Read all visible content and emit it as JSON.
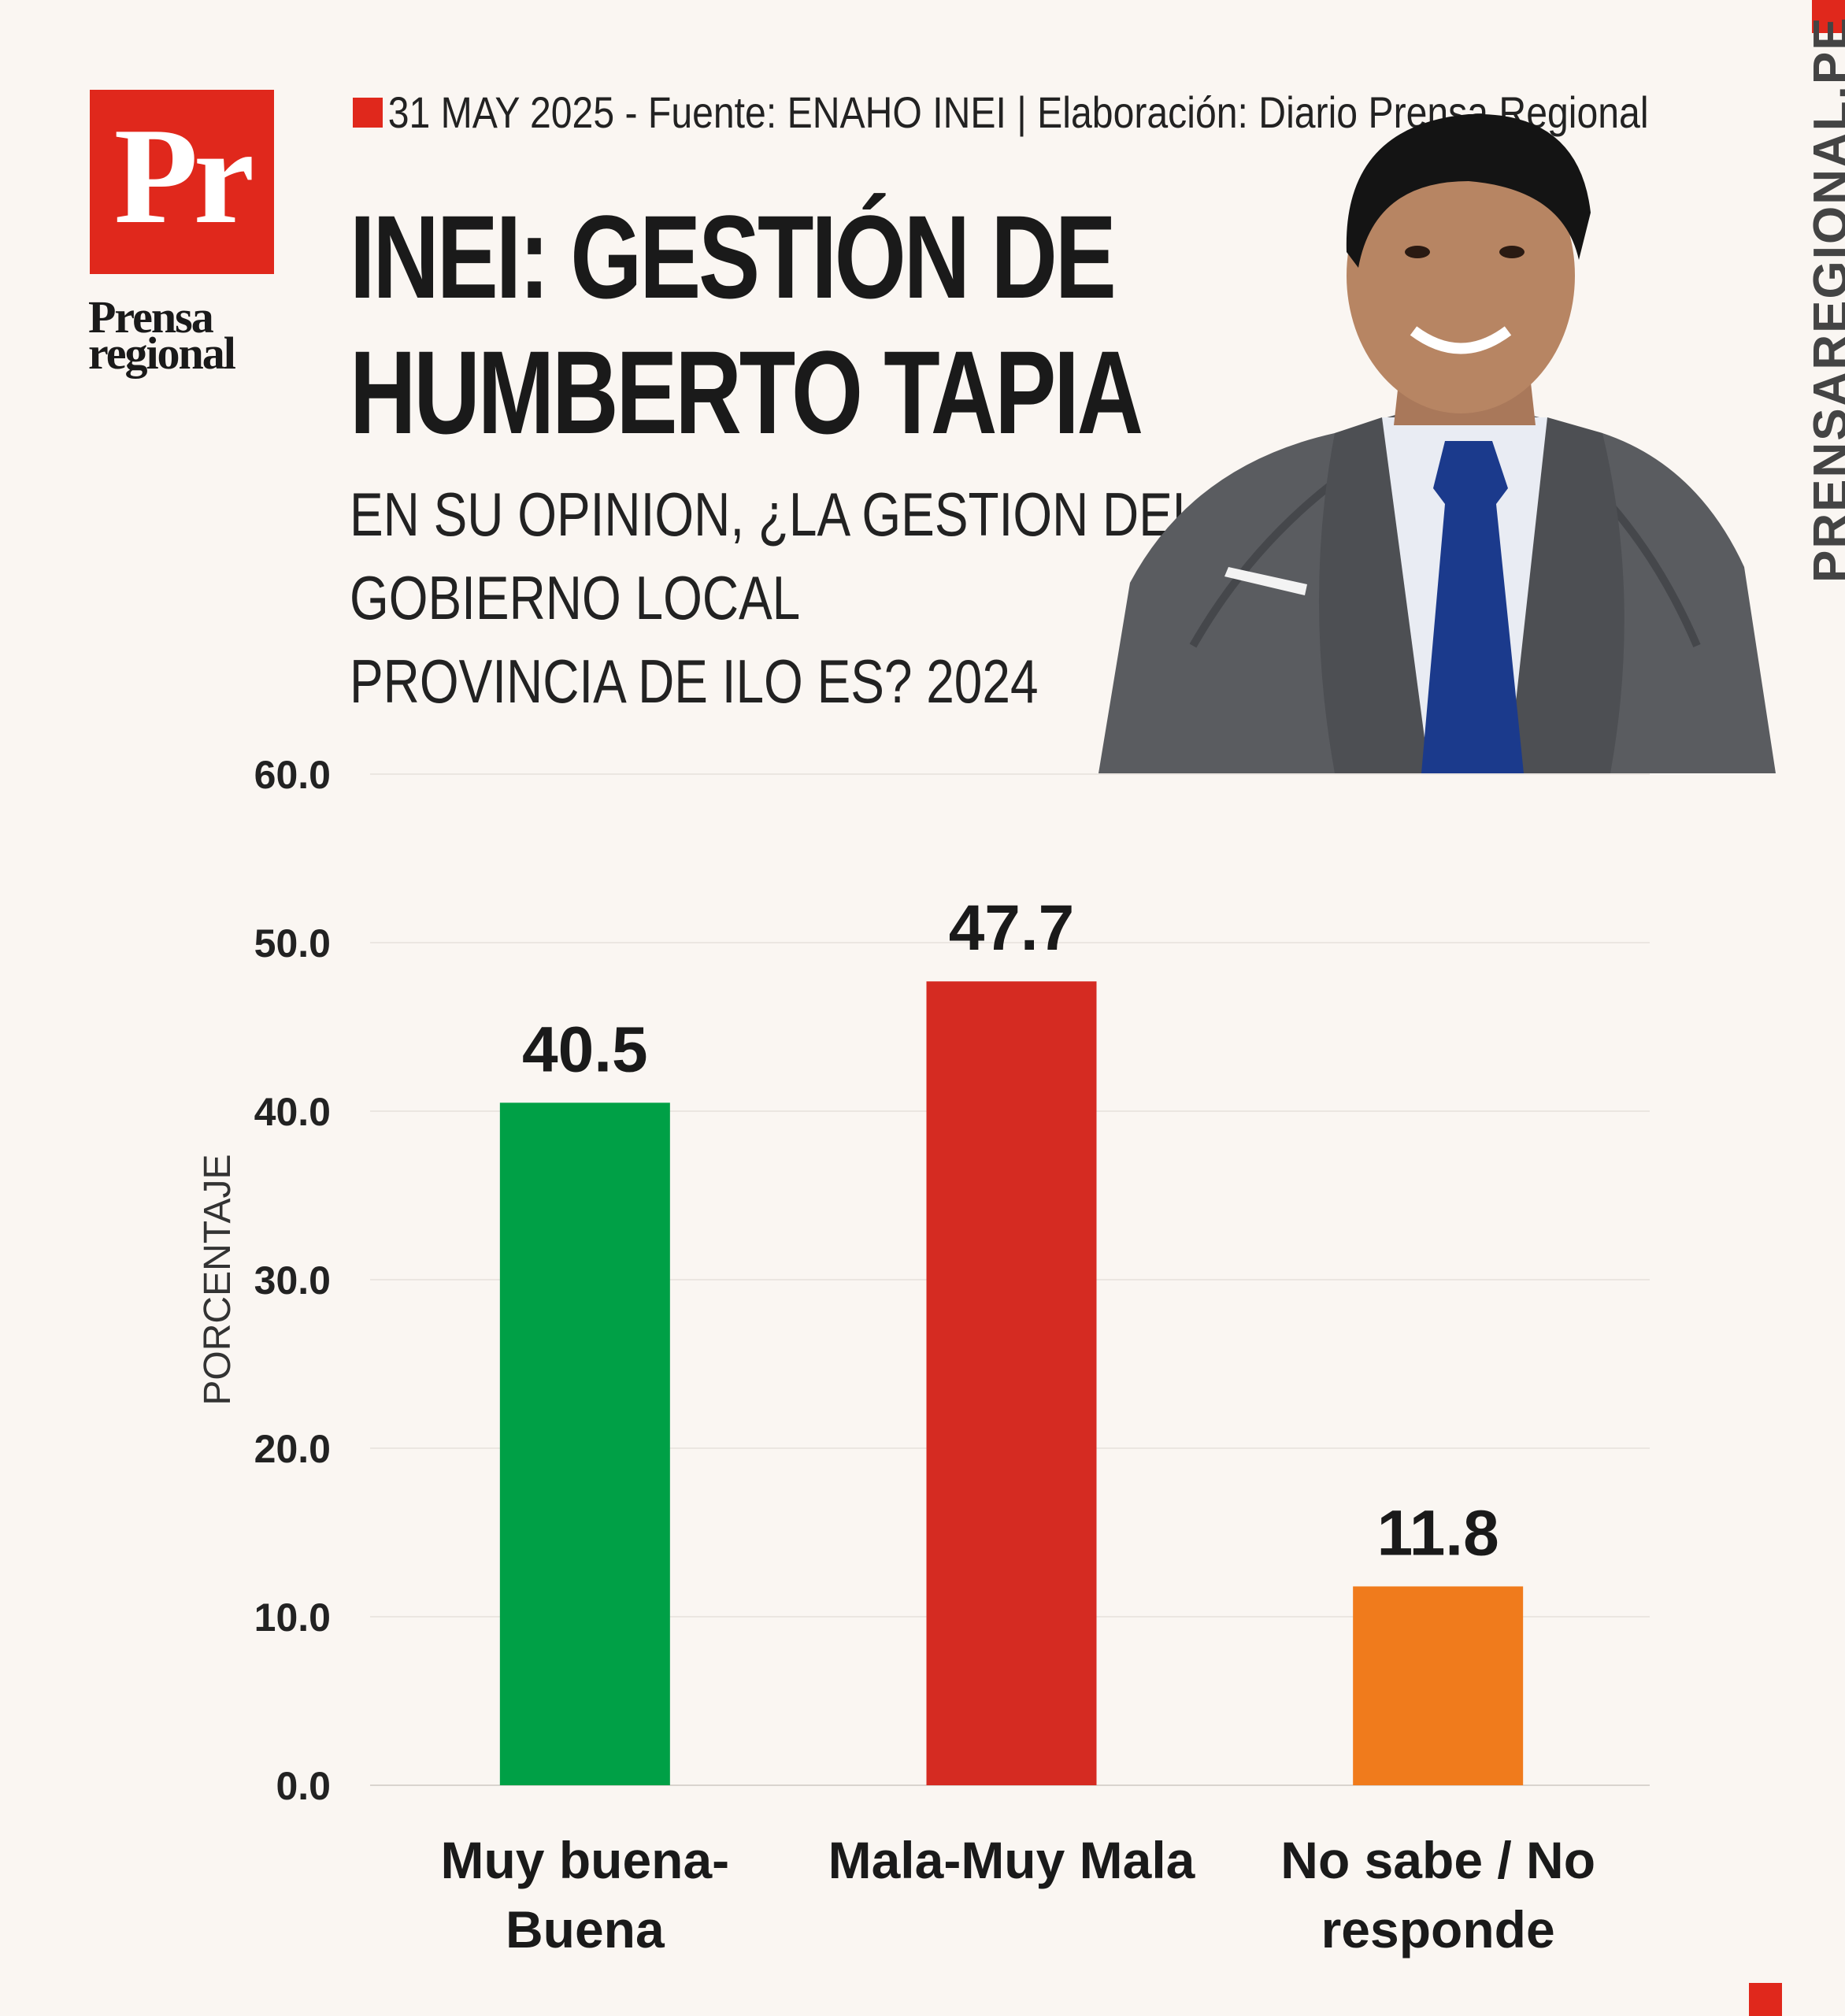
{
  "brand": {
    "logo_mark": "Pr",
    "logo_name_line1": "Prensa",
    "logo_name_line2": "regional",
    "site": "PRENSAREGIONAL.PE",
    "accent_color": "#e0281c"
  },
  "header": {
    "source_line": "31 MAY 2025 -  Fuente: ENAHO INEI | Elaboración: Diario Prensa Regional",
    "title_line1": "INEI: GESTIÓN DE",
    "title_line2": "HUMBERTO TAPIA",
    "question_line1": "EN SU OPINION, ¿LA GESTION DEL",
    "question_line2": "GOBIERNO LOCAL",
    "question_line3": "PROVINCIA DE ILO ES? 2024"
  },
  "chart_data": {
    "type": "bar",
    "ylabel": "PORCENTAJE",
    "ylim": [
      0,
      60
    ],
    "yticks": [
      "0.0",
      "10.0",
      "20.0",
      "30.0",
      "40.0",
      "50.0",
      "60.0"
    ],
    "grid": true,
    "categories": [
      [
        "Muy buena-",
        "Buena"
      ],
      [
        "Mala-Muy Mala"
      ],
      [
        "No sabe / No",
        "responde"
      ]
    ],
    "values": [
      40.5,
      47.7,
      11.8
    ],
    "value_labels": [
      "40.5",
      "47.7",
      "11.8"
    ],
    "colors": [
      "#00a046",
      "#d52b22",
      "#f07b1c"
    ]
  }
}
